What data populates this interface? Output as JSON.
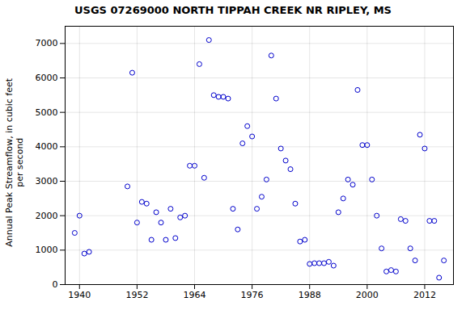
{
  "chart_data": {
    "type": "scatter",
    "title": "USGS 07269000 NORTH TIPPAH CREEK NR RIPLEY, MS",
    "ylabel": "Annual Peak Streamflow, in cubic feet\nper second",
    "x": [
      1939,
      1940,
      1941,
      1942,
      1950,
      1951,
      1952,
      1953,
      1954,
      1955,
      1956,
      1957,
      1958,
      1959,
      1960,
      1961,
      1962,
      1963,
      1964,
      1965,
      1966,
      1967,
      1968,
      1969,
      1970,
      1971,
      1972,
      1973,
      1974,
      1975,
      1976,
      1977,
      1978,
      1979,
      1980,
      1981,
      1982,
      1983,
      1984,
      1985,
      1986,
      1987,
      1988,
      1989,
      1990,
      1991,
      1992,
      1993,
      1994,
      1995,
      1996,
      1997,
      1998,
      1999,
      2000,
      2001,
      2002,
      2003,
      2004,
      2005,
      2006,
      2007,
      2008,
      2009,
      2010,
      2011,
      2012,
      2013,
      2014,
      2015,
      2016
    ],
    "values": [
      1500,
      2000,
      900,
      950,
      2850,
      6150,
      1800,
      2400,
      2350,
      1300,
      2100,
      1800,
      1300,
      2200,
      1350,
      1950,
      2000,
      3450,
      3450,
      6400,
      3100,
      7100,
      5500,
      5450,
      5450,
      5400,
      2200,
      1600,
      4100,
      4600,
      4300,
      2200,
      2550,
      3050,
      6650,
      5400,
      3950,
      3600,
      3350,
      2350,
      1250,
      1300,
      600,
      620,
      620,
      620,
      660,
      550,
      2100,
      2500,
      3050,
      2900,
      5650,
      4050,
      4050,
      3050,
      2000,
      1050,
      380,
      420,
      380,
      1900,
      1850,
      1050,
      700,
      4350,
      3950,
      1850,
      1850,
      200,
      700
    ],
    "color": "#0000CC",
    "marker": "circle",
    "xlim": [
      1937,
      2018
    ],
    "ylim": [
      0,
      7500
    ],
    "xticks": [
      1940,
      1952,
      1964,
      1976,
      1988,
      2000,
      2012
    ],
    "yticks": [
      0,
      1000,
      2000,
      3000,
      4000,
      5000,
      6000,
      7000
    ],
    "grid": true
  }
}
